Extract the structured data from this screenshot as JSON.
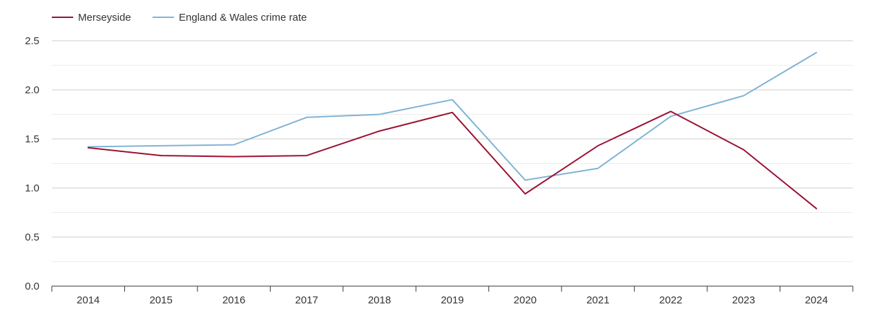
{
  "chart_data": {
    "type": "line",
    "title": "",
    "xlabel": "",
    "ylabel": "",
    "categories": [
      "2014",
      "2015",
      "2016",
      "2017",
      "2018",
      "2019",
      "2020",
      "2021",
      "2022",
      "2023",
      "2024"
    ],
    "series": [
      {
        "name": "Merseyside",
        "color": "#9b0f32",
        "values": [
          1.41,
          1.33,
          1.32,
          1.33,
          1.58,
          1.77,
          0.94,
          1.43,
          1.78,
          1.39,
          0.79
        ]
      },
      {
        "name": "England & Wales crime rate",
        "color": "#7fb3d5",
        "values": [
          1.42,
          1.43,
          1.44,
          1.72,
          1.75,
          1.9,
          1.08,
          1.2,
          1.73,
          1.94,
          2.38
        ]
      }
    ],
    "ylim": [
      0,
      2.5
    ],
    "yticks": [
      0.0,
      0.5,
      1.0,
      1.5,
      2.0,
      2.5
    ],
    "ytick_labels": [
      "0.0",
      "0.5",
      "1.0",
      "1.5",
      "2.0",
      "2.5"
    ],
    "grid": true,
    "legend_position": "top-left"
  }
}
